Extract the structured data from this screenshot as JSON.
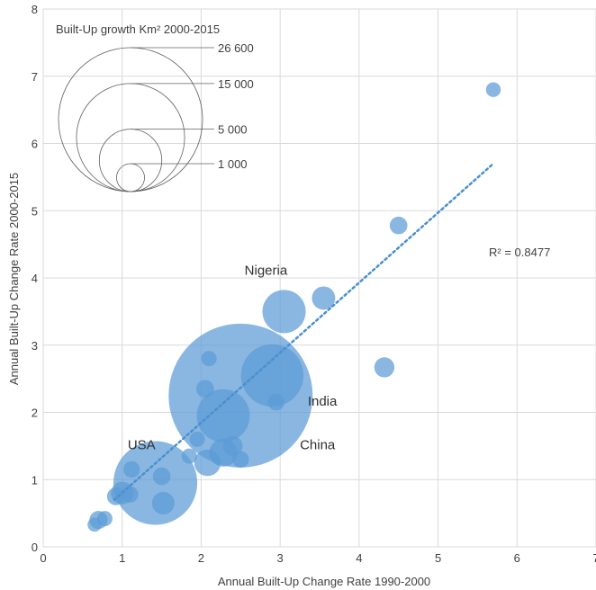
{
  "chart_data": {
    "type": "scatter",
    "subtype": "bubble",
    "xlabel": "Annual Built-Up Change Rate 1990-2000",
    "ylabel": "Annual Built-Up Change Rate 2000-2015",
    "xlim": [
      0,
      7
    ],
    "ylim": [
      0,
      8
    ],
    "xticks": [
      "0",
      "1",
      "2",
      "3",
      "4",
      "5",
      "6",
      "7"
    ],
    "yticks": [
      "0",
      "1",
      "2",
      "3",
      "4",
      "5",
      "6",
      "7",
      "8"
    ],
    "grid": true,
    "bubble_color": "#5b9bd5",
    "trend_color": "#4a90cf",
    "points": [
      {
        "x": 2.5,
        "y": 2.25,
        "size": 26600,
        "label": "China"
      },
      {
        "x": 1.42,
        "y": 0.95,
        "size": 9000,
        "label": "USA"
      },
      {
        "x": 2.9,
        "y": 2.55,
        "size": 5000,
        "label": "India"
      },
      {
        "x": 3.05,
        "y": 3.5,
        "size": 2400,
        "label": "Nigeria"
      },
      {
        "x": 2.28,
        "y": 1.95,
        "size": 3600
      },
      {
        "x": 2.28,
        "y": 1.4,
        "size": 1000
      },
      {
        "x": 2.08,
        "y": 1.25,
        "size": 900
      },
      {
        "x": 2.4,
        "y": 1.5,
        "size": 500
      },
      {
        "x": 1.95,
        "y": 1.6,
        "size": 300
      },
      {
        "x": 2.05,
        "y": 2.35,
        "size": 400
      },
      {
        "x": 2.1,
        "y": 2.8,
        "size": 300
      },
      {
        "x": 2.5,
        "y": 1.3,
        "size": 350
      },
      {
        "x": 3.55,
        "y": 3.7,
        "size": 700
      },
      {
        "x": 4.5,
        "y": 4.78,
        "size": 400
      },
      {
        "x": 5.7,
        "y": 6.8,
        "size": 280
      },
      {
        "x": 4.32,
        "y": 2.67,
        "size": 520
      },
      {
        "x": 1.5,
        "y": 1.05,
        "size": 400
      },
      {
        "x": 1.12,
        "y": 1.15,
        "size": 350
      },
      {
        "x": 1.0,
        "y": 0.8,
        "size": 650
      },
      {
        "x": 0.92,
        "y": 0.75,
        "size": 400
      },
      {
        "x": 1.1,
        "y": 0.78,
        "size": 350
      },
      {
        "x": 1.52,
        "y": 0.65,
        "size": 650
      },
      {
        "x": 1.85,
        "y": 1.35,
        "size": 300
      },
      {
        "x": 0.7,
        "y": 0.4,
        "size": 420
      },
      {
        "x": 0.78,
        "y": 0.42,
        "size": 300
      },
      {
        "x": 0.65,
        "y": 0.33,
        "size": 250
      },
      {
        "x": 2.95,
        "y": 2.15,
        "size": 350
      }
    ],
    "trendline": {
      "x": [
        0.9,
        5.7
      ],
      "y": [
        0.7,
        5.7
      ],
      "label": "R² = 0.8477"
    },
    "legend": {
      "title": "Built-Up growth Km² 2000-2015",
      "values": [
        26600,
        15000,
        5000,
        1000
      ],
      "labels": [
        "26 600",
        "15 000",
        "5 000",
        "1 000"
      ]
    }
  }
}
